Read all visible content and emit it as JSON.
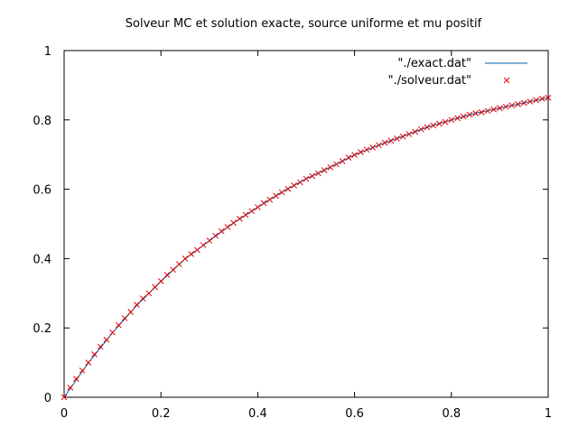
{
  "chart_data": {
    "type": "line",
    "title": "Solveur MC et solution exacte, source uniforme et mu positif",
    "xlabel": "",
    "ylabel": "",
    "xlim": [
      0,
      1
    ],
    "ylim": [
      0,
      1
    ],
    "xticks": [
      "0",
      "0.2",
      "0.4",
      "0.6",
      "0.8",
      "1"
    ],
    "yticks": [
      "0",
      "0.2",
      "0.4",
      "0.6",
      "0.8",
      "1"
    ],
    "grid": false,
    "legend_position": "top-right",
    "series": [
      {
        "name": "\"./exact.dat\"",
        "style": "line",
        "color": "#0060ad",
        "x": [
          0,
          0.05,
          0.1,
          0.15,
          0.2,
          0.25,
          0.3,
          0.35,
          0.4,
          0.45,
          0.5,
          0.55,
          0.6,
          0.65,
          0.7,
          0.75,
          0.8,
          0.85,
          0.9,
          0.95,
          1
        ],
        "y": [
          0,
          0.099,
          0.186,
          0.265,
          0.334,
          0.399,
          0.451,
          0.503,
          0.548,
          0.592,
          0.63,
          0.664,
          0.699,
          0.727,
          0.753,
          0.779,
          0.8,
          0.819,
          0.834,
          0.849,
          0.864
        ]
      },
      {
        "name": "\"./solveur.dat\"",
        "style": "points",
        "marker": "x",
        "color": "#e60000",
        "x": [
          0,
          0.0125,
          0.025,
          0.0375,
          0.05,
          0.0625,
          0.075,
          0.0875,
          0.1,
          0.1125,
          0.125,
          0.1375,
          0.15,
          0.1625,
          0.175,
          0.1875,
          0.2,
          0.2125,
          0.225,
          0.2375,
          0.25,
          0.2625,
          0.275,
          0.2875,
          0.3,
          0.3125,
          0.325,
          0.3375,
          0.35,
          0.3625,
          0.375,
          0.3875,
          0.4,
          0.4125,
          0.425,
          0.4375,
          0.45,
          0.4625,
          0.475,
          0.4875,
          0.5,
          0.5125,
          0.525,
          0.5375,
          0.55,
          0.5625,
          0.575,
          0.5875,
          0.6,
          0.6125,
          0.625,
          0.6375,
          0.65,
          0.6625,
          0.675,
          0.6875,
          0.7,
          0.7125,
          0.725,
          0.7375,
          0.75,
          0.7625,
          0.775,
          0.7875,
          0.8,
          0.8125,
          0.825,
          0.8375,
          0.85,
          0.8625,
          0.875,
          0.8875,
          0.9,
          0.9125,
          0.925,
          0.9375,
          0.95,
          0.9625,
          0.975,
          0.9875,
          1
        ],
        "y": [
          0,
          0.028,
          0.053,
          0.077,
          0.1,
          0.124,
          0.146,
          0.166,
          0.187,
          0.208,
          0.228,
          0.246,
          0.267,
          0.285,
          0.3,
          0.318,
          0.335,
          0.353,
          0.368,
          0.384,
          0.4,
          0.413,
          0.425,
          0.439,
          0.452,
          0.466,
          0.479,
          0.491,
          0.503,
          0.515,
          0.526,
          0.537,
          0.548,
          0.56,
          0.57,
          0.581,
          0.591,
          0.601,
          0.611,
          0.62,
          0.63,
          0.638,
          0.646,
          0.655,
          0.663,
          0.672,
          0.681,
          0.691,
          0.699,
          0.707,
          0.714,
          0.72,
          0.727,
          0.734,
          0.74,
          0.746,
          0.752,
          0.759,
          0.766,
          0.773,
          0.779,
          0.784,
          0.789,
          0.794,
          0.8,
          0.805,
          0.81,
          0.815,
          0.819,
          0.822,
          0.826,
          0.83,
          0.834,
          0.838,
          0.842,
          0.845,
          0.849,
          0.853,
          0.857,
          0.861,
          0.864
        ]
      }
    ]
  }
}
